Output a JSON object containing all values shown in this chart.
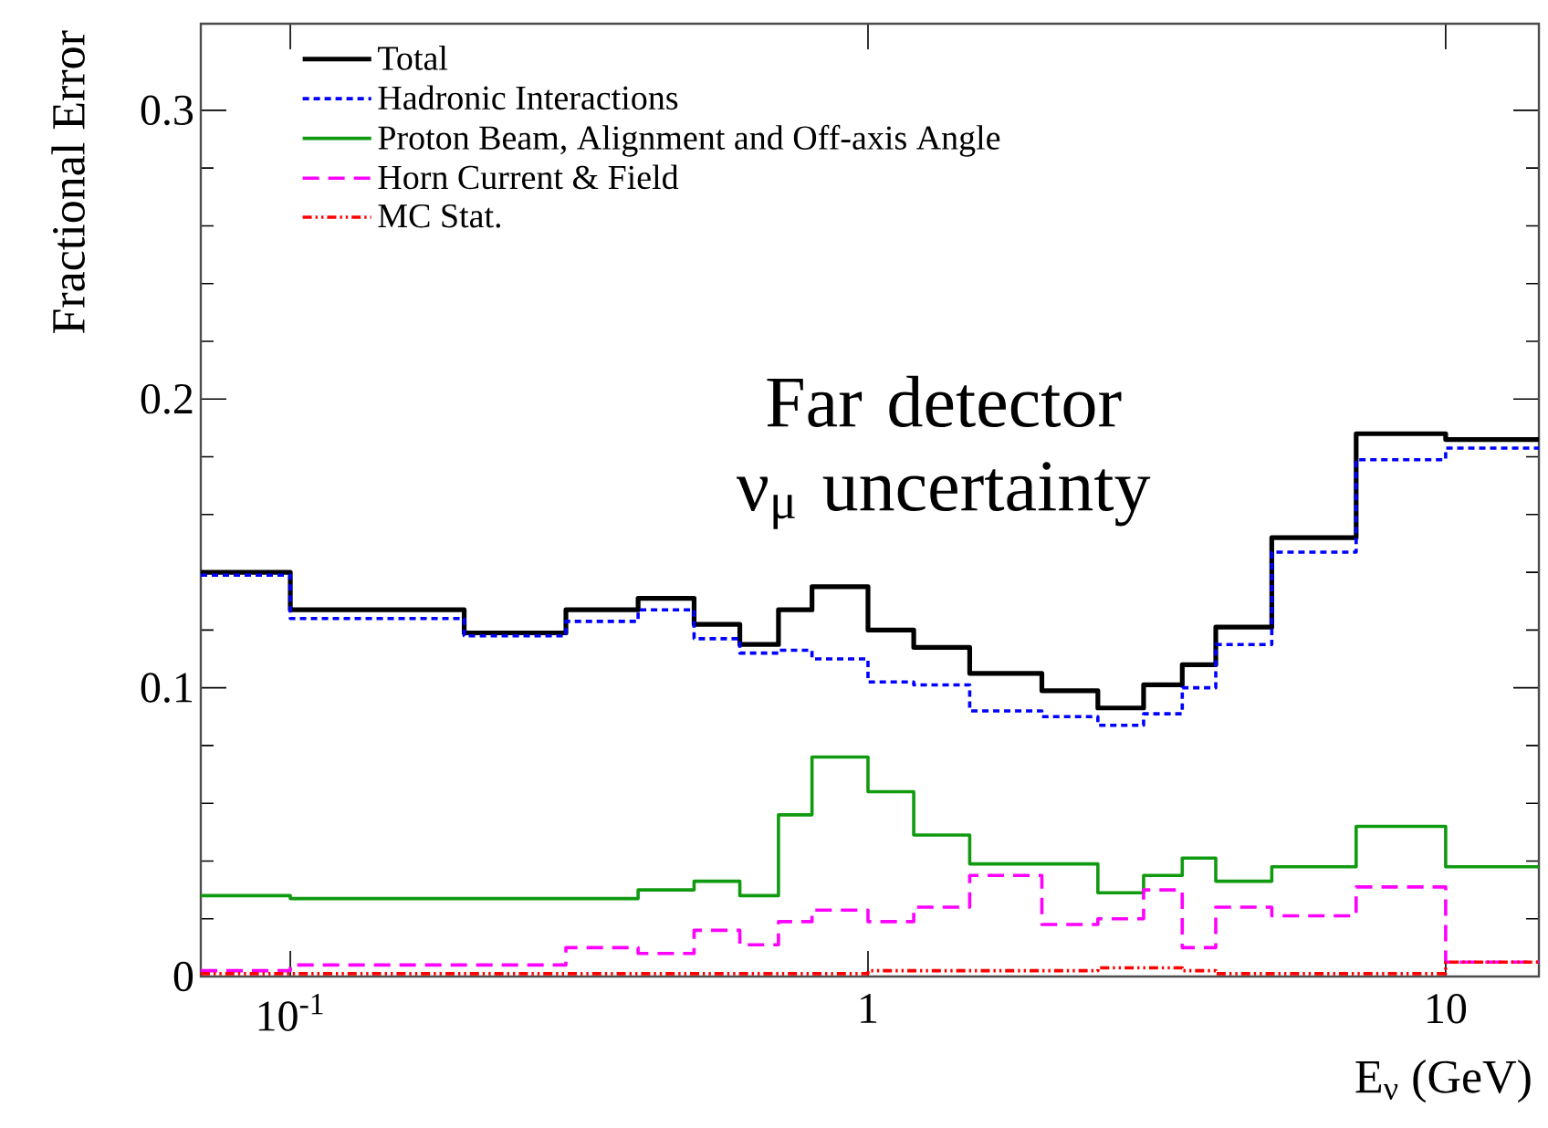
{
  "chart_data": {
    "type": "step",
    "xlabel": "E$_{ν}$ (GeV)",
    "ylabel": "Fractional Error",
    "annotations": [
      "Far detector ν$_{μ}$ uncertainty"
    ],
    "log": "x",
    "grid": false,
    "legend": "top left",
    "marker": "none",
    "xlim": [
      0.07,
      14.5
    ],
    "ylim": [
      0,
      0.33
    ],
    "xticks": [
      {
        "value": 0.1,
        "label": "10$^{-1}$"
      },
      1,
      10
    ],
    "yticks": [
      0,
      0.1,
      0.2,
      0.3
    ],
    "x": [
      0.07,
      0.1,
      0.2,
      0.3,
      0.4,
      0.5,
      0.6,
      0.7,
      0.8,
      1.0,
      1.2,
      1.5,
      2.0,
      2.5,
      3.0,
      3.5,
      4.0,
      5.0,
      7.0,
      10.0,
      14.5
    ],
    "series": [
      {
        "name": "Total",
        "color": "#000000",
        "line_style": "solid",
        "values": [
          0.14,
          0.127,
          0.119,
          0.127,
          0.131,
          0.122,
          0.115,
          0.127,
          0.135,
          0.12,
          0.114,
          0.105,
          0.099,
          0.093,
          0.101,
          0.108,
          0.121,
          0.152,
          0.188,
          0.186,
          0.186
        ]
      },
      {
        "name": "Hadronic Interactions",
        "color": "#0000ff",
        "line_style": "dotted",
        "values": [
          0.139,
          0.124,
          0.118,
          0.123,
          0.127,
          0.117,
          0.112,
          0.113,
          0.11,
          0.102,
          0.101,
          0.092,
          0.09,
          0.087,
          0.091,
          0.1,
          0.115,
          0.147,
          0.179,
          0.183,
          0.183
        ]
      },
      {
        "name": "Proton Beam, Alignment and Off-axis Angle",
        "color": "#109a10",
        "line_style": "solid",
        "values": [
          0.028,
          0.027,
          0.027,
          0.027,
          0.03,
          0.033,
          0.028,
          0.056,
          0.076,
          0.064,
          0.049,
          0.039,
          0.039,
          0.029,
          0.035,
          0.041,
          0.033,
          0.038,
          0.052,
          0.038,
          0.038
        ]
      },
      {
        "name": "Horn Current & Field",
        "color": "#ff00ff",
        "line_style": "dashed",
        "values": [
          0.002,
          0.004,
          0.004,
          0.01,
          0.008,
          0.016,
          0.011,
          0.019,
          0.023,
          0.019,
          0.024,
          0.035,
          0.018,
          0.02,
          0.03,
          0.01,
          0.024,
          0.021,
          0.031,
          0.005,
          0.005
        ]
      },
      {
        "name": "MC Stat.",
        "color": "#ff0000",
        "line_style": "dashdotted",
        "values": [
          0.001,
          0.001,
          0.001,
          0.001,
          0.001,
          0.001,
          0.001,
          0.001,
          0.001,
          0.002,
          0.002,
          0.002,
          0.002,
          0.003,
          0.003,
          0.002,
          0.001,
          0.001,
          0.001,
          0.005,
          0.005
        ]
      }
    ]
  }
}
